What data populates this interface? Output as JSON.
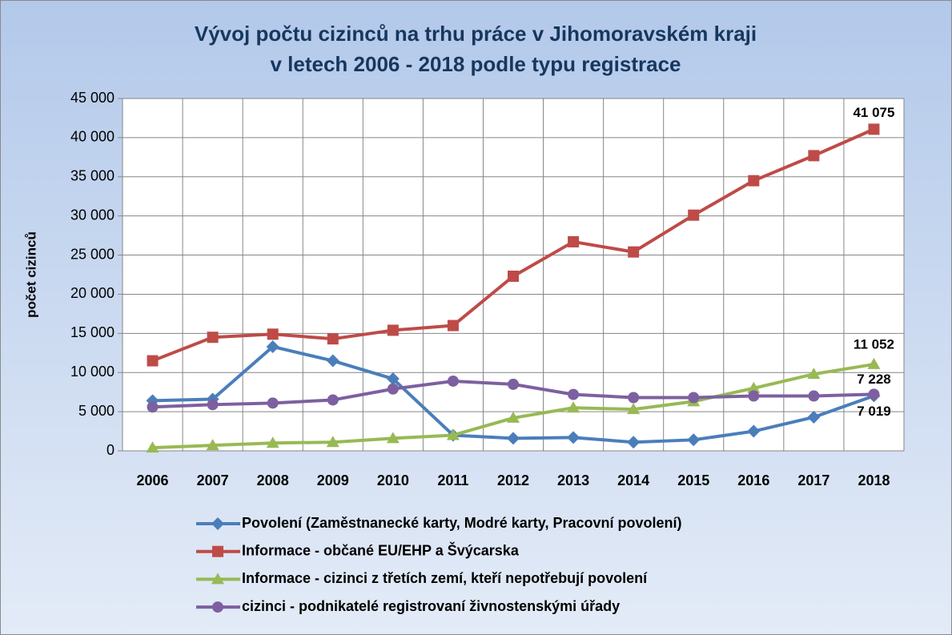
{
  "chart_data": {
    "type": "line",
    "title": [
      "Vývoj počtu cizinců na trhu práce v Jihomoravském kraji",
      "v letech 2006 - 2018 podle typu registrace"
    ],
    "y_label": "počet cizinců",
    "categories": [
      "2006",
      "2007",
      "2008",
      "2009",
      "2010",
      "2011",
      "2012",
      "2013",
      "2014",
      "2015",
      "2016",
      "2017",
      "2018"
    ],
    "ylim": [
      0,
      45000
    ],
    "yticks": [
      0,
      {
        "value": 5000,
        "label": "5 000"
      },
      {
        "value": 10000,
        "label": "10 000"
      },
      {
        "value": 15000,
        "label": "15 000"
      },
      {
        "value": 20000,
        "label": "20 000"
      },
      {
        "value": 25000,
        "label": "25 000"
      },
      {
        "value": 30000,
        "label": "30 000"
      },
      {
        "value": 35000,
        "label": "35 000"
      },
      {
        "value": 40000,
        "label": "40 000"
      },
      {
        "value": 45000,
        "label": "45 000"
      }
    ],
    "grid": true,
    "legend": "bottom",
    "series": [
      {
        "name": "Povolení (Zaměstnanecké karty, Modré karty, Pracovní povolení)",
        "color": "#4a7ebb",
        "marker": "diamond",
        "values": [
          6400,
          6600,
          13300,
          11500,
          9200,
          2000,
          1600,
          1700,
          1100,
          1400,
          2500,
          4300,
          7019
        ],
        "value_labels": [
          null,
          null,
          null,
          null,
          null,
          null,
          null,
          null,
          null,
          null,
          null,
          null,
          "7 019"
        ]
      },
      {
        "name": "Informace - občané EU/EHP a Švýcarska",
        "color": "#be4b48",
        "marker": "square",
        "values": [
          11500,
          14500,
          14900,
          14300,
          15400,
          16000,
          22300,
          26700,
          25400,
          30100,
          34500,
          37700,
          41075
        ],
        "value_labels": [
          null,
          null,
          null,
          null,
          null,
          null,
          null,
          null,
          null,
          null,
          null,
          null,
          "41 075"
        ]
      },
      {
        "name": "Informace - cizinci z třetích zemí, kteří nepotřebují povolení",
        "color": "#98b954",
        "marker": "triangle",
        "values": [
          400,
          700,
          1000,
          1100,
          1600,
          2000,
          4200,
          5500,
          5300,
          6300,
          8000,
          9800,
          11052
        ],
        "value_labels": [
          null,
          null,
          null,
          null,
          null,
          null,
          null,
          null,
          null,
          null,
          null,
          null,
          "11 052"
        ]
      },
      {
        "name": "cizinci - podnikatelé registrovaní živnostenskými úřady",
        "color": "#7d60a0",
        "marker": "circle",
        "values": [
          5600,
          5900,
          6100,
          6500,
          7900,
          8900,
          8500,
          7200,
          6800,
          6800,
          7000,
          7000,
          7228
        ],
        "value_labels": [
          null,
          null,
          null,
          null,
          null,
          null,
          null,
          null,
          null,
          null,
          null,
          null,
          "7 228"
        ]
      }
    ]
  }
}
